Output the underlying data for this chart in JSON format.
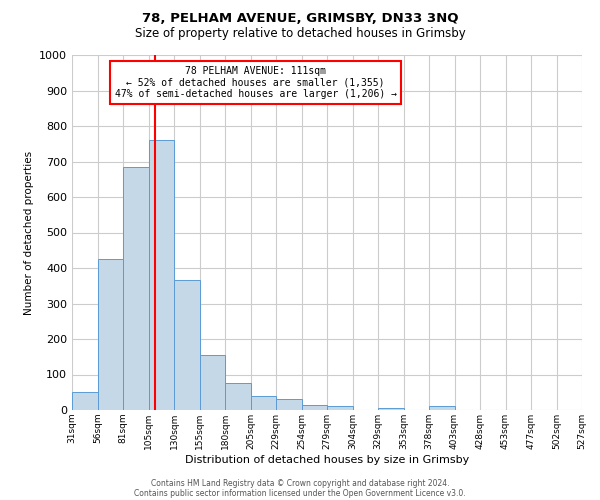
{
  "title": "78, PELHAM AVENUE, GRIMSBY, DN33 3NQ",
  "subtitle": "Size of property relative to detached houses in Grimsby",
  "xlabel": "Distribution of detached houses by size in Grimsby",
  "ylabel": "Number of detached properties",
  "bar_color": "#c5d8e8",
  "bar_edge_color": "#5b9bd5",
  "bin_labels": [
    "31sqm",
    "56sqm",
    "81sqm",
    "105sqm",
    "130sqm",
    "155sqm",
    "180sqm",
    "205sqm",
    "229sqm",
    "254sqm",
    "279sqm",
    "304sqm",
    "329sqm",
    "353sqm",
    "378sqm",
    "403sqm",
    "428sqm",
    "453sqm",
    "477sqm",
    "502sqm",
    "527sqm"
  ],
  "bar_heights": [
    52,
    425,
    685,
    760,
    365,
    155,
    75,
    40,
    30,
    15,
    10,
    0,
    5,
    0,
    10,
    0,
    0,
    0,
    0,
    0
  ],
  "ylim": [
    0,
    1000
  ],
  "yticks": [
    0,
    100,
    200,
    300,
    400,
    500,
    600,
    700,
    800,
    900,
    1000
  ],
  "red_line_x": 3.24,
  "annotation_title": "78 PELHAM AVENUE: 111sqm",
  "annotation_line1": "← 52% of detached houses are smaller (1,355)",
  "annotation_line2": "47% of semi-detached houses are larger (1,206) →",
  "footer1": "Contains HM Land Registry data © Crown copyright and database right 2024.",
  "footer2": "Contains public sector information licensed under the Open Government Licence v3.0."
}
